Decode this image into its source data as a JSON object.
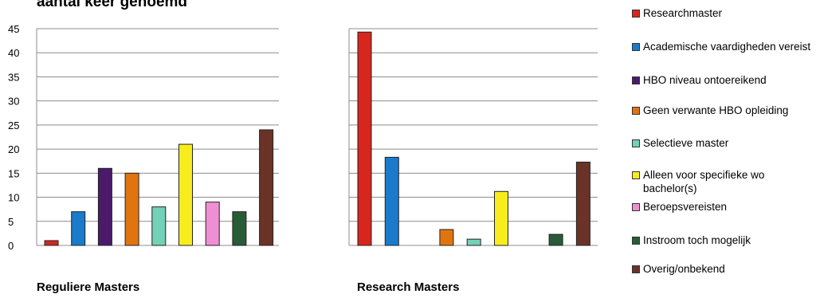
{
  "title_fragment": "aantal keer genoemd",
  "chart_data": [
    {
      "type": "bar",
      "name": "Reguliere Masters",
      "categories": [
        "Researchmaster",
        "Academische vaardigheden vereist",
        "HBO niveau ontoereikend",
        "Geen verwante HBO opleiding",
        "Selectieve master",
        "Alleen voor specifieke wo bachelor(s)",
        "Beroepsvereisten",
        "Instroom toch mogelijk",
        "Overig/onbekend"
      ],
      "values": [
        1,
        7,
        16,
        15,
        8,
        21,
        9,
        7,
        24
      ],
      "ylim": [
        0,
        45
      ],
      "yticks": [
        "0",
        "5",
        "10",
        "15",
        "20",
        "25",
        "30",
        "35",
        "40",
        "45"
      ],
      "grid": true,
      "legend": "right"
    },
    {
      "type": "bar",
      "name": "Research Masters",
      "categories": [
        "Researchmaster",
        "Academische vaardigheden vereist",
        "HBO niveau ontoereikend",
        "Geen verwante HBO opleiding",
        "Selectieve master",
        "Alleen voor specifieke wo bachelor(s)",
        "Beroepsvereisten",
        "Instroom toch mogelijk",
        "Overig/onbekend"
      ],
      "values": [
        44.3,
        18.3,
        0,
        3.3,
        1.3,
        11.2,
        0,
        2.3,
        17.3
      ],
      "ylim": [
        0,
        45
      ],
      "grid": true
    }
  ],
  "legend": [
    {
      "label": "Researchmaster",
      "color": "#d7261e"
    },
    {
      "label": "Academische vaardigheden vereist",
      "color": "#1a7acb"
    },
    {
      "label": "HBO niveau ontoereikend",
      "color": "#4b1a6b"
    },
    {
      "label": "Geen verwante HBO opleiding",
      "color": "#e0750f"
    },
    {
      "label": "Selectieve master",
      "color": "#72d1b6"
    },
    {
      "label": "Alleen voor specifieke wo bachelor(s)",
      "color": "#f9ec1c"
    },
    {
      "label": "Beroepsvereisten",
      "color": "#ee8fd3"
    },
    {
      "label": "Instroom toch mogelijk",
      "color": "#285c36"
    },
    {
      "label": "Overig/onbekend",
      "color": "#6b3328"
    }
  ],
  "captions": {
    "left": "Reguliere Masters",
    "right": "Research Masters"
  }
}
